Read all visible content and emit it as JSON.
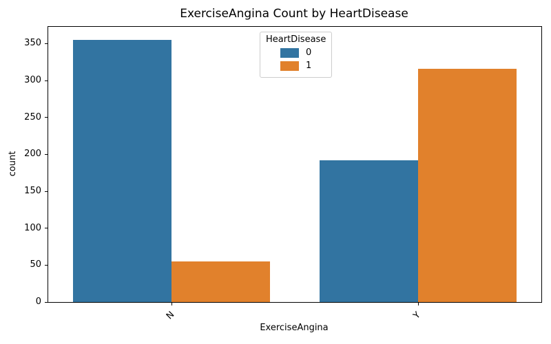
{
  "figure": {
    "title": "ExerciseAngina Count by HeartDisease",
    "xlabel": "ExerciseAngina",
    "ylabel": "count"
  },
  "legend": {
    "title": "HeartDisease",
    "entries": [
      {
        "label": "0",
        "color": "#3274a1"
      },
      {
        "label": "1",
        "color": "#e1812c"
      }
    ]
  },
  "chart_data": {
    "type": "bar",
    "title": "ExerciseAngina Count by HeartDisease",
    "xlabel": "ExerciseAngina",
    "ylabel": "count",
    "categories": [
      "N",
      "Y"
    ],
    "series": [
      {
        "name": "0",
        "color": "#3274a1",
        "values": [
          355,
          192
        ]
      },
      {
        "name": "1",
        "color": "#e1812c",
        "values": [
          55,
          316
        ]
      }
    ],
    "legend_title": "HeartDisease",
    "legend_position": "upper center",
    "ylim": [
      0,
      372.75
    ],
    "yticks": [
      0,
      50,
      100,
      150,
      200,
      250,
      300,
      350
    ],
    "grid": false,
    "xtick_rotation": 45,
    "group_width": 0.8,
    "bar_width": 0.4
  }
}
